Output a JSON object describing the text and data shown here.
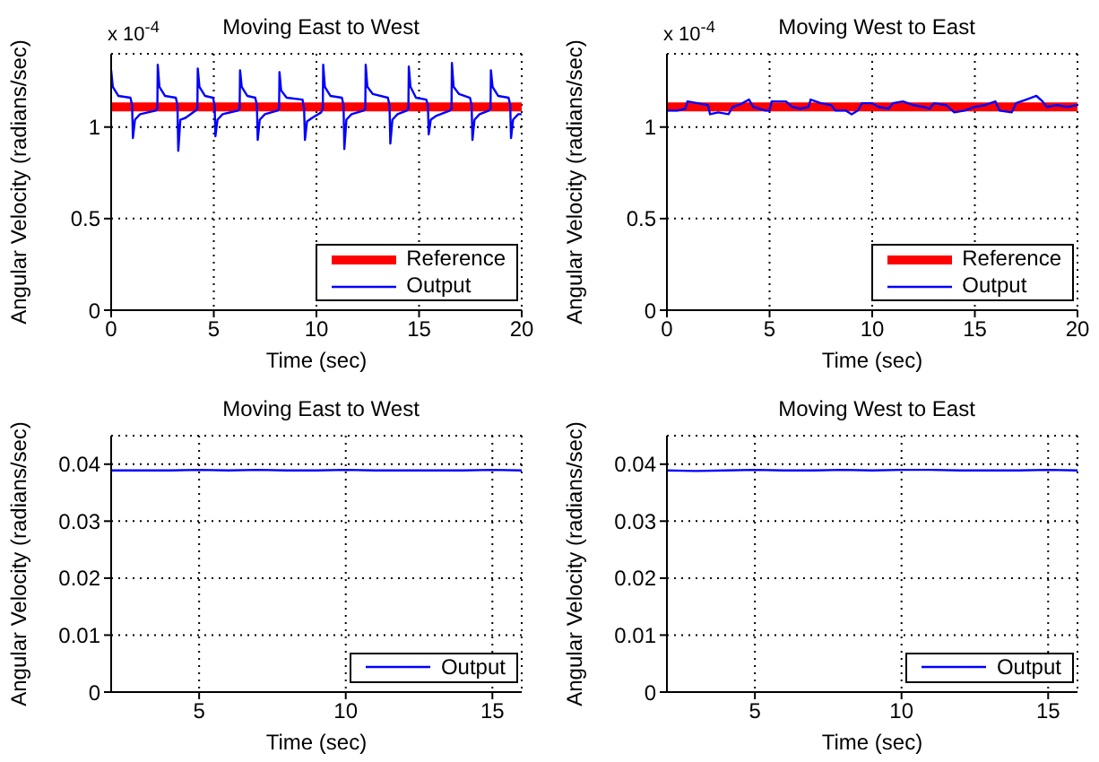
{
  "chart_data": [
    {
      "type": "line",
      "title": "Moving East to West",
      "xlabel": "Time (sec)",
      "ylabel": "Angular Velocity (radians/sec)",
      "annotations": [
        "x 10$^{-4}$"
      ],
      "xlim": [
        0,
        20
      ],
      "xticks": [
        0,
        5,
        10,
        15,
        20
      ],
      "ylim": [
        0,
        1.4
      ],
      "yticks": [
        0,
        0.5,
        1
      ],
      "grid": true,
      "legend": "bottom right",
      "series": [
        {
          "name": "Reference",
          "color": "#ff0000",
          "x": [
            0,
            20
          ],
          "values": [
            1.11,
            1.11
          ]
        },
        {
          "name": "Output",
          "color": "#0000ff",
          "x": [
            0,
            0.08,
            0.35,
            0.94,
            1.02,
            1.06,
            1.16,
            1.41,
            2.17,
            2.25,
            2.27,
            2.35,
            2.62,
            3.15,
            3.23,
            3.27,
            3.37,
            3.62,
            4.12,
            4.2,
            4.22,
            4.3,
            4.57,
            4.96,
            5.04,
            5.08,
            5.18,
            5.43,
            6.18,
            6.26,
            6.28,
            6.36,
            6.63,
            7.02,
            7.1,
            7.14,
            7.24,
            7.49,
            8.1,
            8.18,
            8.2,
            8.28,
            8.55,
            9.32,
            9.4,
            9.44,
            9.54,
            9.79,
            10.23,
            10.31,
            10.33,
            10.41,
            10.68,
            11.24,
            11.32,
            11.36,
            11.46,
            11.71,
            12.3,
            12.38,
            12.4,
            12.48,
            12.75,
            13.48,
            13.56,
            13.6,
            13.7,
            13.95,
            14.4,
            14.48,
            14.5,
            14.58,
            14.85,
            15.35,
            15.43,
            15.47,
            15.57,
            15.82,
            16.5,
            16.58,
            16.6,
            16.68,
            16.95,
            17.48,
            17.56,
            17.6,
            17.7,
            17.95,
            18.4,
            18.48,
            18.5,
            18.58,
            18.85,
            19.36,
            19.44,
            19.48,
            19.58,
            19.83,
            20
          ],
          "values": [
            1.31,
            1.22,
            1.17,
            1.16,
            1.12,
            0.94,
            1.04,
            1.07,
            1.09,
            1.1,
            1.34,
            1.22,
            1.17,
            1.16,
            1.12,
            0.87,
            1.04,
            1.05,
            1.09,
            1.1,
            1.32,
            1.22,
            1.17,
            1.16,
            1.12,
            0.95,
            1.04,
            1.07,
            1.09,
            1.1,
            1.31,
            1.22,
            1.17,
            1.16,
            1.12,
            0.93,
            1.04,
            1.07,
            1.09,
            1.1,
            1.3,
            1.2,
            1.16,
            1.15,
            1.1,
            0.93,
            1.03,
            1.05,
            1.08,
            1.1,
            1.34,
            1.22,
            1.17,
            1.16,
            1.12,
            0.88,
            1.04,
            1.07,
            1.09,
            1.1,
            1.34,
            1.22,
            1.18,
            1.16,
            1.12,
            0.91,
            1.04,
            1.07,
            1.09,
            1.1,
            1.33,
            1.22,
            1.16,
            1.15,
            1.12,
            0.96,
            1.04,
            1.06,
            1.09,
            1.1,
            1.35,
            1.22,
            1.18,
            1.16,
            1.12,
            0.93,
            1.04,
            1.07,
            1.09,
            1.1,
            1.31,
            1.22,
            1.17,
            1.16,
            1.12,
            0.94,
            1.04,
            1.07,
            1.07
          ]
        }
      ]
    },
    {
      "type": "line",
      "title": "Moving West to East",
      "xlabel": "Time (sec)",
      "ylabel": "Angular Velocity (radians/sec)",
      "annotations": [
        "x 10$^{-4}$"
      ],
      "xlim": [
        0,
        20
      ],
      "xticks": [
        0,
        5,
        10,
        15,
        20
      ],
      "ylim": [
        0,
        1.4
      ],
      "yticks": [
        0,
        0.5,
        1
      ],
      "grid": true,
      "legend": "bottom right",
      "series": [
        {
          "name": "Reference",
          "color": "#ff0000",
          "x": [
            0,
            20
          ],
          "values": [
            1.11,
            1.11
          ]
        },
        {
          "name": "Output",
          "color": "#0000ff",
          "x": [
            0,
            0.5,
            0.9,
            1.0,
            1.5,
            2.0,
            2.1,
            2.5,
            3.0,
            3.2,
            3.5,
            4.0,
            4.2,
            4.8,
            5.0,
            5.1,
            5.8,
            6.1,
            6.5,
            6.9,
            7.0,
            7.5,
            8.0,
            8.2,
            8.7,
            9.0,
            9.3,
            9.5,
            10.0,
            10.3,
            10.8,
            11.0,
            11.5,
            12.0,
            12.5,
            12.8,
            13.0,
            13.6,
            14.0,
            14.5,
            15.0,
            15.5,
            16.0,
            16.2,
            16.8,
            17.0,
            17.5,
            18.0,
            18.3,
            18.5,
            19.0,
            19.5,
            20
          ],
          "values": [
            1.09,
            1.09,
            1.1,
            1.14,
            1.13,
            1.12,
            1.07,
            1.08,
            1.07,
            1.11,
            1.12,
            1.15,
            1.11,
            1.09,
            1.09,
            1.14,
            1.14,
            1.11,
            1.1,
            1.11,
            1.15,
            1.13,
            1.12,
            1.09,
            1.09,
            1.07,
            1.09,
            1.13,
            1.13,
            1.11,
            1.1,
            1.13,
            1.14,
            1.12,
            1.11,
            1.1,
            1.13,
            1.12,
            1.08,
            1.09,
            1.11,
            1.12,
            1.14,
            1.09,
            1.08,
            1.13,
            1.15,
            1.17,
            1.14,
            1.11,
            1.12,
            1.11,
            1.12
          ]
        }
      ]
    },
    {
      "type": "line",
      "title": "Moving East to West",
      "xlabel": "Time (sec)",
      "ylabel": "Angular Velocity (radians/sec)",
      "xlim": [
        2,
        16
      ],
      "xticks": [
        5,
        10,
        15
      ],
      "ylim": [
        0,
        0.045
      ],
      "yticks": [
        0,
        0.01,
        0.02,
        0.03,
        0.04
      ],
      "grid": true,
      "legend": "bottom right",
      "series": [
        {
          "name": "Output",
          "color": "#0000ff",
          "x": [
            2,
            3,
            4,
            5,
            6,
            7,
            8,
            9,
            10,
            11,
            12,
            13,
            14,
            15,
            16
          ],
          "values": [
            0.0389,
            0.0389,
            0.0389,
            0.039,
            0.0389,
            0.039,
            0.0389,
            0.0389,
            0.039,
            0.0389,
            0.0389,
            0.0389,
            0.0389,
            0.039,
            0.0389
          ]
        }
      ]
    },
    {
      "type": "line",
      "title": "Moving West to East",
      "xlabel": "Time (sec)",
      "ylabel": "Angular Velocity (radians/sec)",
      "xlim": [
        2,
        16
      ],
      "xticks": [
        5,
        10,
        15
      ],
      "ylim": [
        0,
        0.045
      ],
      "yticks": [
        0,
        0.01,
        0.02,
        0.03,
        0.04
      ],
      "grid": true,
      "legend": "bottom right",
      "series": [
        {
          "name": "Output",
          "color": "#0000ff",
          "x": [
            2,
            3,
            4,
            5,
            6,
            7,
            8,
            9,
            10,
            11,
            12,
            13,
            14,
            15,
            16
          ],
          "values": [
            0.0389,
            0.0388,
            0.0389,
            0.039,
            0.0389,
            0.0389,
            0.039,
            0.0389,
            0.039,
            0.039,
            0.0389,
            0.0389,
            0.0389,
            0.039,
            0.0389
          ]
        }
      ]
    }
  ]
}
